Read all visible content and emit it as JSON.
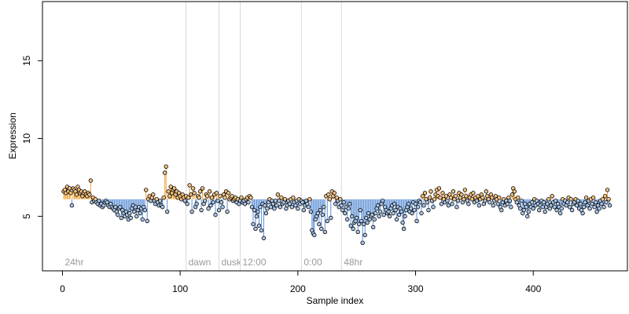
{
  "chart_data": {
    "type": "scatter",
    "title": "",
    "xlabel": "Sample index",
    "ylabel": "Expression",
    "xlim": [
      -17,
      480
    ],
    "ylim": [
      1.5,
      18.8
    ],
    "x_ticks": [
      0,
      100,
      200,
      300,
      400
    ],
    "y_ticks": [
      5,
      10,
      15
    ],
    "grid": false,
    "legend": "none",
    "reference_level": 6.1,
    "colors": {
      "above_stem": "#f0a030",
      "below_stem": "#5b8fd6",
      "above_point": "#f5c280",
      "below_point": "#a9c6ea",
      "marker_edge": "#000000",
      "phase_line": "#d9d9d9",
      "phase_label": "#9a9a9a"
    },
    "phases": [
      {
        "label": "24hr",
        "x": 0
      },
      {
        "label": "dawn",
        "x": 105
      },
      {
        "label": "dusk",
        "x": 133
      },
      {
        "label": "12:00",
        "x": 151
      },
      {
        "label": "0:00",
        "x": 203
      },
      {
        "label": "48hr",
        "x": 237
      }
    ],
    "series": [
      {
        "x_start": 1,
        "values": [
          6.6,
          6.7,
          6.5,
          6.9,
          6.6,
          6.8,
          6.5,
          5.7,
          6.8,
          6.7,
          6.6,
          6.4,
          6.9,
          6.7,
          6.5,
          6.6,
          6.3,
          6.5,
          6.6,
          6.4,
          6.3,
          6.5,
          6.4,
          7.3,
          5.9,
          6.2,
          6.0,
          6.1,
          5.9,
          5.8,
          6.0,
          5.7,
          5.8,
          5.6,
          5.7,
          5.9,
          6.0,
          5.9,
          5.7,
          5.6,
          5.8,
          5.6,
          5.5,
          5.4,
          5.6,
          5.3,
          5.1,
          5.5,
          5.6,
          4.9,
          5.4,
          5.2,
          5.0,
          5.3,
          5.1,
          4.8,
          5.2,
          4.9,
          5.5,
          5.7,
          5.3,
          5.6,
          5.0,
          5.4,
          5.6,
          5.2,
          5.5,
          4.8,
          5.6,
          5.4,
          6.7,
          4.7,
          6.1,
          6.3,
          6.0,
          6.2,
          6.4,
          6.0,
          5.8,
          6.1,
          5.9,
          5.7,
          6.0,
          5.7,
          5.6,
          6.2,
          7.8,
          8.2,
          5.3,
          6.6,
          6.3,
          6.9,
          6.5,
          6.7,
          6.8,
          6.4,
          6.6,
          6.2,
          6.5,
          6.3,
          6.1,
          6.4,
          6.2,
          6.0,
          6.3,
          5.8,
          6.2,
          7.0,
          6.4,
          5.3,
          6.8,
          6.5,
          5.6,
          5.8,
          6.3,
          6.2,
          6.6,
          5.4,
          6.8,
          5.8,
          6.0,
          6.4,
          6.3,
          5.5,
          6.6,
          5.7,
          6.2,
          5.9,
          6.4,
          5.1,
          6.5,
          6.0,
          5.4,
          6.3,
          5.9,
          5.6,
          6.4,
          6.2,
          6.6,
          5.3,
          6.5,
          6.1,
          6.2,
          6.3,
          6.0,
          6.1,
          6.2,
          5.9,
          6.1,
          5.8,
          6.0,
          6.2,
          5.9,
          6.0,
          5.8,
          6.1,
          6.2,
          5.9,
          6.3,
          6.2,
          5.6,
          4.5,
          5.4,
          4.2,
          5.0,
          5.3,
          4.4,
          5.6,
          4.1,
          5.8,
          3.6,
          5.7,
          5.2,
          5.5,
          5.9,
          6.1,
          5.6,
          6.0,
          5.8,
          5.5,
          6.0,
          5.7,
          6.4,
          6.0,
          5.6,
          6.2,
          5.8,
          5.9,
          6.1,
          5.5,
          5.7,
          6.0,
          5.8,
          6.1,
          5.6,
          6.2,
          5.9,
          5.7,
          6.0,
          5.5,
          6.1,
          5.8,
          6.0,
          5.9,
          5.4,
          5.7,
          6.0,
          5.8,
          5.6,
          6.1,
          5.3,
          4.1,
          3.9,
          3.8,
          4.8,
          5.0,
          5.2,
          4.5,
          5.4,
          4.2,
          5.1,
          5.6,
          4.0,
          6.3,
          4.7,
          6.4,
          6.1,
          4.9,
          6.6,
          6.3,
          6.5,
          5.8,
          6.2,
          6.0,
          5.6,
          6.1,
          5.7,
          5.4,
          5.9,
          5.2,
          5.6,
          4.8,
          5.5,
          5.8,
          4.4,
          5.0,
          4.2,
          4.6,
          4.7,
          4.9,
          4.0,
          4.5,
          5.4,
          4.7,
          3.3,
          4.5,
          3.8,
          4.9,
          4.6,
          5.2,
          4.8,
          5.0,
          5.1,
          4.3,
          4.8,
          5.2,
          5.5,
          5.7,
          5.0,
          5.3,
          5.8,
          6.0,
          5.1,
          5.6,
          5.4,
          5.2,
          5.3,
          5.0,
          5.5,
          5.7,
          5.2,
          5.8,
          5.4,
          4.8,
          5.6,
          5.1,
          5.5,
          5.3,
          4.6,
          4.2,
          5.0,
          5.4,
          5.6,
          5.8,
          5.3,
          5.5,
          5.2,
          5.9,
          5.4,
          5.8,
          4.7,
          5.6,
          6.0,
          5.9,
          5.2,
          6.3,
          5.7,
          6.5,
          6.1,
          5.9,
          5.4,
          6.2,
          6.6,
          6.0,
          5.6,
          6.1,
          6.4,
          6.7,
          6.3,
          6.8,
          6.2,
          5.8,
          6.5,
          6.1,
          5.9,
          6.3,
          6.0,
          5.7,
          6.4,
          6.2,
          5.8,
          6.6,
          6.1,
          6.3,
          5.6,
          6.0,
          6.5,
          6.2,
          6.4,
          5.9,
          6.1,
          6.7,
          6.3,
          6.0,
          5.8,
          6.2,
          6.4,
          6.1,
          6.5,
          5.9,
          6.2,
          6.0,
          6.3,
          5.7,
          6.1,
          6.4,
          6.2,
          5.8,
          6.0,
          6.6,
          6.3,
          6.1,
          5.9,
          6.4,
          6.2,
          5.7,
          6.0,
          6.3,
          6.1,
          5.8,
          6.2,
          5.6,
          5.4,
          5.9,
          6.1,
          5.7,
          6.0,
          5.8,
          6.2,
          6.0,
          5.6,
          6.4,
          6.8,
          6.6,
          6.1,
          5.9,
          6.2,
          5.7,
          5.5,
          6.0,
          5.2,
          5.4,
          5.8,
          5.6,
          5.0,
          5.3,
          5.8,
          5.6,
          5.9,
          5.5,
          6.1,
          5.7,
          6.0,
          5.8,
          5.4,
          5.7,
          6.0,
          5.6,
          5.9,
          5.3,
          5.6,
          5.8,
          6.1,
          5.5,
          5.7,
          6.3,
          5.9,
          5.6,
          6.0,
          5.4,
          5.8,
          5.6,
          5.2,
          5.5,
          6.1,
          5.8,
          6.0,
          5.7,
          5.9,
          6.2,
          5.6,
          6.1,
          5.4,
          5.8,
          5.9,
          6.1,
          5.7,
          6.0,
          5.5,
          5.8,
          5.4,
          5.2,
          5.6,
          5.9,
          6.2,
          5.7,
          6.0,
          5.5,
          6.1,
          5.8,
          6.2,
          5.6,
          5.9,
          5.3,
          5.7,
          5.5,
          6.0,
          5.8,
          6.1,
          5.6,
          6.3,
          5.9,
          6.7,
          6.1,
          5.7
        ]
      }
    ]
  }
}
